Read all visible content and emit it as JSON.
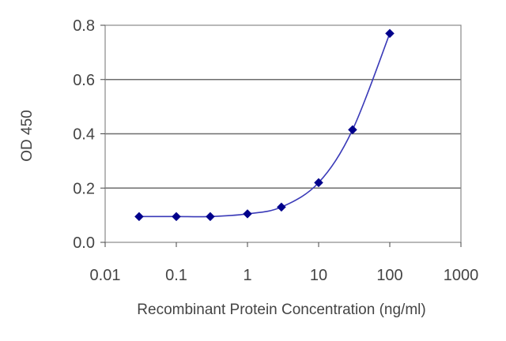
{
  "chart_data": {
    "type": "line",
    "title": "",
    "xlabel": "Recombinant Protein Concentration (ng/ml)",
    "ylabel": "OD 450",
    "x_scale": "log",
    "xlim": [
      0.01,
      1000
    ],
    "ylim": [
      0.0,
      0.8
    ],
    "x_ticks": [
      "0.01",
      "0.1",
      "1",
      "10",
      "100",
      "1000"
    ],
    "y_ticks": [
      "0.0",
      "0.2",
      "0.4",
      "0.6",
      "0.8"
    ],
    "grid": "horizontal",
    "series": [
      {
        "name": "",
        "color": "#00008b",
        "x": [
          0.03,
          0.1,
          0.3,
          1,
          3,
          10,
          30,
          100
        ],
        "y": [
          0.095,
          0.095,
          0.095,
          0.105,
          0.13,
          0.22,
          0.415,
          0.77
        ]
      }
    ]
  }
}
